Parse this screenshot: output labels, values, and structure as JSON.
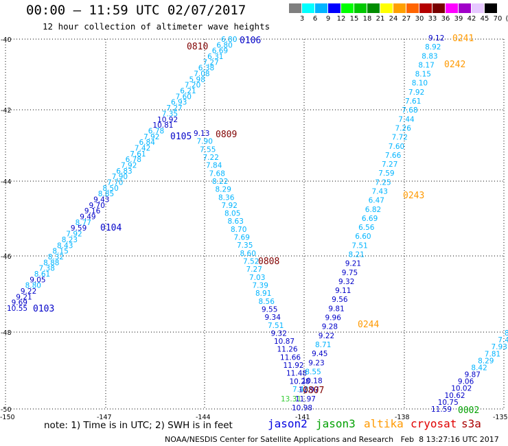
{
  "title": "00:00 — 11:59 UTC 02/07/2017",
  "subtitle": "12 hour collection of altimeter wave heights",
  "colorbar": {
    "colors": [
      "#7f7f7f",
      "#00ffff",
      "#00b4ff",
      "#0000ff",
      "#00ff00",
      "#00c800",
      "#008c00",
      "#ffff00",
      "#ffa000",
      "#ff6400",
      "#b40000",
      "#780000",
      "#ff00ff",
      "#a000c8",
      "#e6c8ff",
      "#000000"
    ],
    "labels": [
      "3",
      "6",
      "9",
      "12",
      "15",
      "18",
      "21",
      "24",
      "27",
      "30",
      "33",
      "36",
      "39",
      "42",
      "45",
      "70",
      "(ft)"
    ]
  },
  "axes": {
    "lat_labels": [
      "-40",
      "-42",
      "-44",
      "-46",
      "-48",
      "-50"
    ],
    "lon_labels": [
      "-150",
      "-147",
      "-144",
      "-141",
      "-138",
      "-135"
    ]
  },
  "note": "note: 1) Time is in UTC; 2) SWH is in feet",
  "satellites": [
    {
      "name": "jason2",
      "color": "#0000e0"
    },
    {
      "name": "jason3",
      "color": "#00a000"
    },
    {
      "name": "altika",
      "color": "#ff9900"
    },
    {
      "name": "cryosat",
      "color": "#e00000"
    },
    {
      "name": "s3a",
      "color": "#aa0000"
    }
  ],
  "credit": "NOAA/NESDIS Center for Satellite Applications and Research   Feb  8 13:27:16 UTC 2017",
  "colors": {
    "cyan": "#00b4ff",
    "blue": "#0000c8",
    "darkred": "#800000",
    "orange": "#ff9900",
    "green": "#00c800"
  },
  "observations": {
    "jason2_pass1": [
      "10.55",
      "9.69",
      "9.21",
      "9.22",
      "8.80",
      "9.05",
      "8.61",
      "7.38",
      "8.88",
      "8.32",
      "8.15",
      "8.43",
      "8.23",
      "7.92",
      "9.59",
      "8.77",
      "9.49",
      "9.16",
      "9.70",
      "9.43",
      "8.85",
      "8.50",
      "7.70",
      "7.90",
      "6.83",
      "7.92",
      "6.78",
      "7.61",
      "7.42",
      "6.84",
      "7.92",
      "6.78",
      "10.81",
      "10.92",
      "7.35",
      "7.27",
      "6.93",
      "7.60",
      "6.21",
      "7.20",
      "5.98",
      "7.08",
      "6.38",
      "7.27",
      "6.31",
      "6.69",
      "6.80",
      "6.80"
    ],
    "jason2_pass2": [
      "9.13",
      "7.90",
      "7.55",
      "7.22",
      "7.84",
      "7.68",
      "8.22",
      "8.29",
      "8.36",
      "7.92",
      "8.05",
      "8.63",
      "8.70",
      "7.69",
      "7.35",
      "8.60",
      "7.52",
      "7.27",
      "7.03",
      "7.39",
      "8.91",
      "8.56",
      "9.55",
      "9.34",
      "7.51",
      "9.32",
      "10.87",
      "11.26",
      "11.66",
      "11.92",
      "11.48",
      "10.28",
      "7.43"
    ],
    "jason2_pass3": [
      "10.98",
      "11.97",
      "11.97",
      "10.18",
      "8.55",
      "9.23",
      "9.45",
      "8.71",
      "9.22",
      "9.28",
      "9.96",
      "9.81",
      "9.56",
      "9.11",
      "9.32",
      "9.75",
      "9.21",
      "8.21",
      "7.51",
      "6.60",
      "6.56",
      "6.69",
      "6.82",
      "6.47",
      "7.43",
      "7.25",
      "7.59",
      "7.27",
      "7.66",
      "7.60",
      "7.72",
      "7.26",
      "7.44",
      "7.68",
      "7.61",
      "7.92",
      "8.10",
      "8.15",
      "8.17",
      "8.83",
      "8.92",
      "9.12"
    ],
    "jason2_pass4": [
      "11.59",
      "10.75",
      "10.62",
      "10.02",
      "9.06",
      "9.87",
      "8.42",
      "8.29",
      "7.81",
      "7.93",
      "7.4",
      "8"
    ],
    "jason3_single": [
      "13.31"
    ]
  },
  "time_tags": [
    {
      "text": "0103",
      "color": "#0000c8"
    },
    {
      "text": "0104",
      "color": "#0000c8"
    },
    {
      "text": "0105",
      "color": "#0000c8"
    },
    {
      "text": "0106",
      "color": "#0000c8"
    },
    {
      "text": "0810",
      "color": "#800000"
    },
    {
      "text": "0809",
      "color": "#800000"
    },
    {
      "text": "0808",
      "color": "#800000"
    },
    {
      "text": "0807",
      "color": "#800000"
    },
    {
      "text": "0241",
      "color": "#ff9900"
    },
    {
      "text": "0242",
      "color": "#ff9900"
    },
    {
      "text": "0243",
      "color": "#ff9900"
    },
    {
      "text": "0244",
      "color": "#ff9900"
    },
    {
      "text": "0002",
      "color": "#00a000"
    }
  ]
}
